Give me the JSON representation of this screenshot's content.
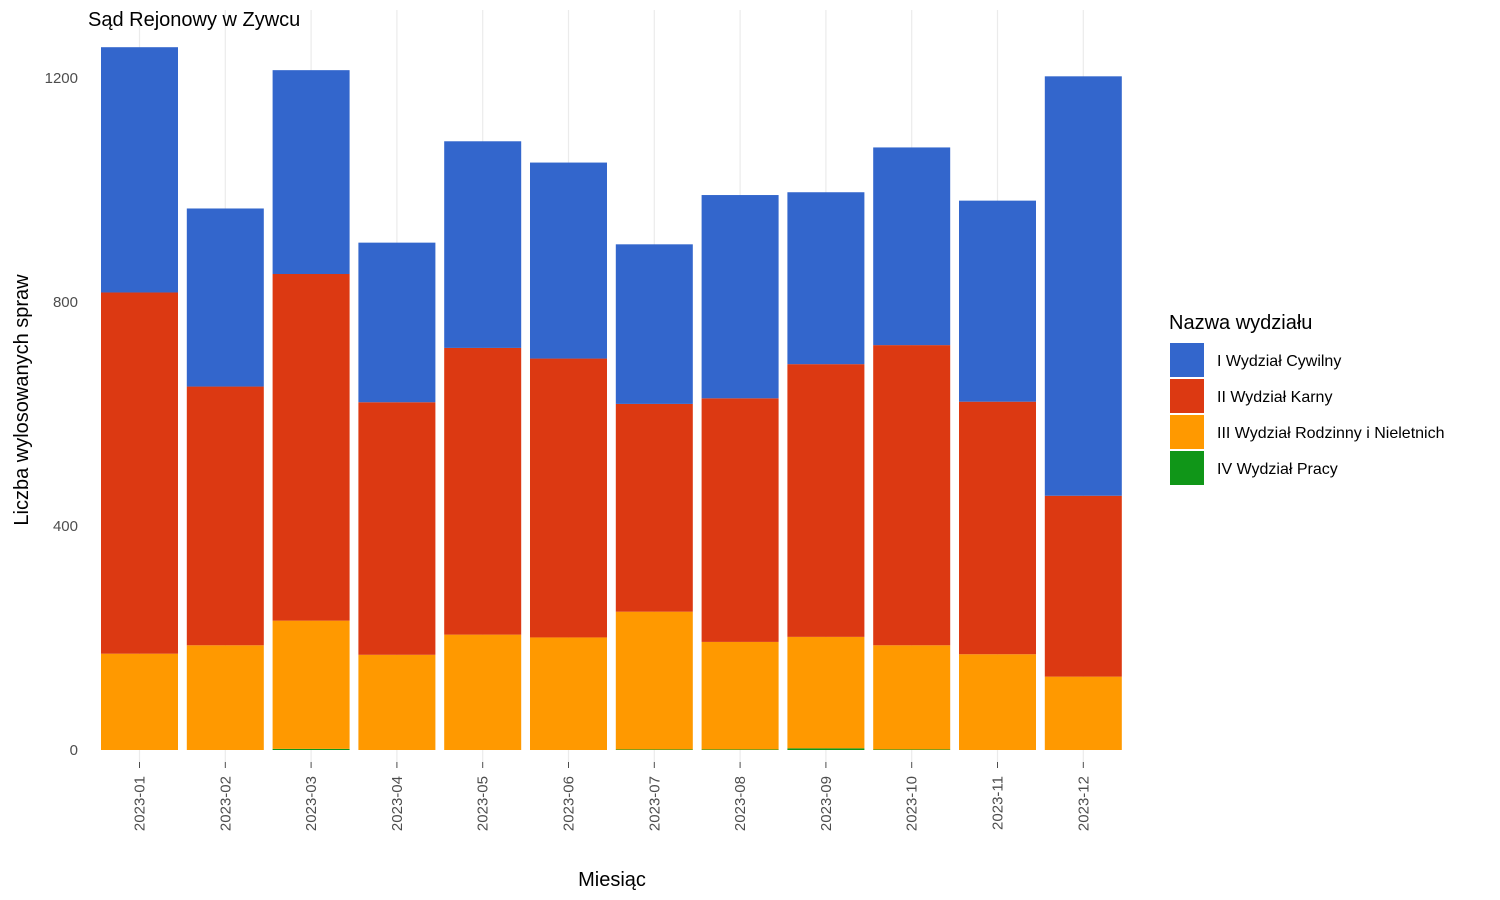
{
  "chart_data": {
    "type": "bar",
    "stacked": true,
    "title": "Sąd Rejonowy w Zywcu",
    "xlabel": "Miesiąc",
    "ylabel": "Liczba wylosowanych spraw",
    "ylim": [
      0,
      1260
    ],
    "yticks": [
      0,
      400,
      800,
      1200
    ],
    "grid": true,
    "legend_position": "right",
    "legend_title": "Nazwa wydziału",
    "categories": [
      "2023-01",
      "2023-02",
      "2023-03",
      "2023-04",
      "2023-05",
      "2023-06",
      "2023-07",
      "2023-08",
      "2023-09",
      "2023-10",
      "2023-11",
      "2023-12"
    ],
    "series": [
      {
        "name": "IV Wydział Pracy",
        "color": "#109618",
        "values": [
          0,
          0,
          2,
          0,
          0,
          0,
          1,
          1,
          3,
          1,
          0,
          0
        ]
      },
      {
        "name": "III Wydział Rodzinny i Nieletnich",
        "color": "#FF9900",
        "values": [
          172,
          187,
          229,
          170,
          206,
          201,
          246,
          192,
          199,
          186,
          171,
          131
        ]
      },
      {
        "name": "II Wydział Karny",
        "color": "#DC3912",
        "values": [
          645,
          462,
          619,
          451,
          512,
          498,
          371,
          435,
          487,
          536,
          451,
          323
        ]
      },
      {
        "name": "I Wydział Cywilny",
        "color": "#3366CC",
        "values": [
          438,
          318,
          364,
          285,
          369,
          350,
          285,
          363,
          307,
          353,
          359,
          749
        ]
      }
    ],
    "legend_order": [
      "I Wydział Cywilny",
      "II Wydział Karny",
      "III Wydział Rodzinny i Nieletnich",
      "IV Wydział Pracy"
    ]
  }
}
